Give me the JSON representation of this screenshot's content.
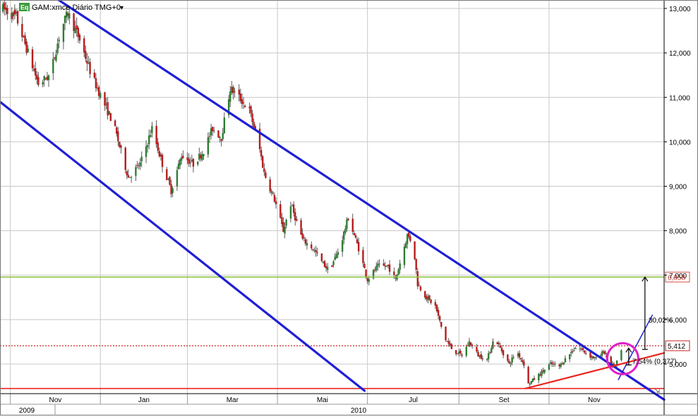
{
  "header": {
    "badge": "Eq",
    "title": "GAM:xmce Diário TMG+0",
    "dropdown_glyph": "▾"
  },
  "chart_data": {
    "type": "candlestick",
    "title": "GAM:xmce Diário TMG+0",
    "ylim": [
      4.4,
      13.1
    ],
    "y_ticks": [
      "13,000",
      "12,000",
      "11,000",
      "10,000",
      "9,000",
      "8,000",
      "7,000",
      "6,000",
      "5,000"
    ],
    "y_tick_values": [
      13,
      12,
      11,
      10,
      9,
      8,
      7,
      6,
      5
    ],
    "x_labels": [
      "Nov",
      "Jan",
      "Mar",
      "Mai",
      "Jul",
      "Set",
      "Nov"
    ],
    "x_label_dates": [
      "2009-11-01",
      "2010-01-01",
      "2010-03-01",
      "2010-05-01",
      "2010-07-01",
      "2010-09-01",
      "2010-11-01"
    ],
    "year_labels": [
      "2009",
      "2010"
    ],
    "x_range": [
      "2009-10-25",
      "2011-01-18"
    ],
    "price_path": [
      [
        "2009-10-27",
        13.0
      ],
      [
        "2009-11-05",
        12.8
      ],
      [
        "2009-11-12",
        12.1
      ],
      [
        "2009-11-20",
        11.3
      ],
      [
        "2009-11-28",
        11.5
      ],
      [
        "2009-12-05",
        12.5
      ],
      [
        "2009-12-10",
        12.9
      ],
      [
        "2009-12-18",
        12.3
      ],
      [
        "2009-12-26",
        11.5
      ],
      [
        "2010-01-03",
        10.9
      ],
      [
        "2010-01-10",
        10.4
      ],
      [
        "2010-01-14",
        9.9
      ],
      [
        "2010-01-20",
        9.2
      ],
      [
        "2010-01-28",
        9.5
      ],
      [
        "2010-02-05",
        10.3
      ],
      [
        "2010-02-12",
        9.5
      ],
      [
        "2010-02-18",
        8.9
      ],
      [
        "2010-02-25",
        9.7
      ],
      [
        "2010-03-05",
        9.5
      ],
      [
        "2010-03-12",
        9.8
      ],
      [
        "2010-03-18",
        10.3
      ],
      [
        "2010-03-24",
        10.1
      ],
      [
        "2010-03-30",
        11.2
      ],
      [
        "2010-04-05",
        11.0
      ],
      [
        "2010-04-12",
        10.7
      ],
      [
        "2010-04-18",
        10.0
      ],
      [
        "2010-04-22",
        9.3
      ],
      [
        "2010-04-29",
        8.7
      ],
      [
        "2010-05-05",
        8.0
      ],
      [
        "2010-05-10",
        8.6
      ],
      [
        "2010-05-18",
        7.8
      ],
      [
        "2010-05-25",
        7.6
      ],
      [
        "2010-05-31",
        7.3
      ],
      [
        "2010-06-05",
        7.1
      ],
      [
        "2010-06-12",
        7.6
      ],
      [
        "2010-06-18",
        8.3
      ],
      [
        "2010-06-25",
        7.6
      ],
      [
        "2010-07-01",
        6.9
      ],
      [
        "2010-07-08",
        7.2
      ],
      [
        "2010-07-15",
        7.2
      ],
      [
        "2010-07-20",
        6.9
      ],
      [
        "2010-07-28",
        7.9
      ],
      [
        "2010-08-01",
        7.7
      ],
      [
        "2010-08-04",
        6.8
      ],
      [
        "2010-08-10",
        6.5
      ],
      [
        "2010-08-16",
        6.3
      ],
      [
        "2010-08-22",
        5.6
      ],
      [
        "2010-08-28",
        5.3
      ],
      [
        "2010-09-03",
        5.2
      ],
      [
        "2010-09-08",
        5.5
      ],
      [
        "2010-09-14",
        5.2
      ],
      [
        "2010-09-20",
        5.1
      ],
      [
        "2010-09-25",
        5.6
      ],
      [
        "2010-09-30",
        5.3
      ],
      [
        "2010-10-05",
        5.0
      ],
      [
        "2010-10-10",
        5.3
      ],
      [
        "2010-10-15",
        5.0
      ],
      [
        "2010-10-18",
        4.55
      ],
      [
        "2010-10-25",
        4.75
      ],
      [
        "2010-11-02",
        5.0
      ],
      [
        "2010-11-08",
        4.95
      ],
      [
        "2010-11-14",
        5.2
      ],
      [
        "2010-11-20",
        5.4
      ],
      [
        "2010-11-28",
        5.2
      ],
      [
        "2010-12-04",
        5.1
      ],
      [
        "2010-12-08",
        5.3
      ],
      [
        "2010-12-12",
        5.0
      ],
      [
        "2010-12-16",
        4.95
      ],
      [
        "2010-12-20",
        5.3
      ]
    ],
    "trendlines": [
      {
        "name": "upper-channel",
        "color": "#1f1fd6",
        "from": [
          "2009-12-01",
          13.25
        ],
        "to": [
          "2011-01-18",
          4.2
        ]
      },
      {
        "name": "lower-channel",
        "color": "#1f1fd6",
        "from": [
          "2009-10-25",
          10.9
        ],
        "to": [
          "2010-06-29",
          4.4
        ]
      },
      {
        "name": "breakout-line",
        "color": "#1f1fd6",
        "from": [
          "2010-12-18",
          4.65
        ],
        "to": [
          "2011-01-10",
          6.1
        ]
      },
      {
        "name": "support-line",
        "color": "#e8251f",
        "from": [
          "2010-10-16",
          4.45
        ],
        "to": [
          "2011-01-18",
          5.25
        ]
      }
    ],
    "horizontal_lines": [
      {
        "name": "target-level",
        "value": 6.958,
        "label": "6,958",
        "color": "#8cc43c",
        "style": "solid"
      },
      {
        "name": "last-price",
        "value": 5.412,
        "label": "5,412",
        "color": "#cc2222",
        "style": "dotted"
      },
      {
        "name": "base-level",
        "value": 4.45,
        "color": "#e8251f",
        "style": "solid"
      }
    ],
    "annotations": [
      {
        "text": "30,02%",
        "at": [
          "2011-01-05",
          6.0
        ],
        "arrow_from": 5.33,
        "arrow_to": 6.958,
        "arrow_date": "2011-01-05"
      },
      {
        "text": "7,54% (0,377)",
        "at": [
          "2010-12-27",
          5.07
        ],
        "arrow_from": 4.98,
        "arrow_to": 5.36,
        "arrow_date": "2010-12-25"
      }
    ],
    "highlight_circle": {
      "center": [
        "2010-12-20",
        5.12
      ],
      "color": "#e020c8"
    },
    "grid": true,
    "legend": "none"
  },
  "colors": {
    "background": "#ffffff",
    "grid": "#c8c8c8",
    "up_candle": "#2e7d32",
    "down_candle": "#b71c1c",
    "wick": "#333333"
  },
  "footer": {
    "corner_glyph": "⇲"
  }
}
